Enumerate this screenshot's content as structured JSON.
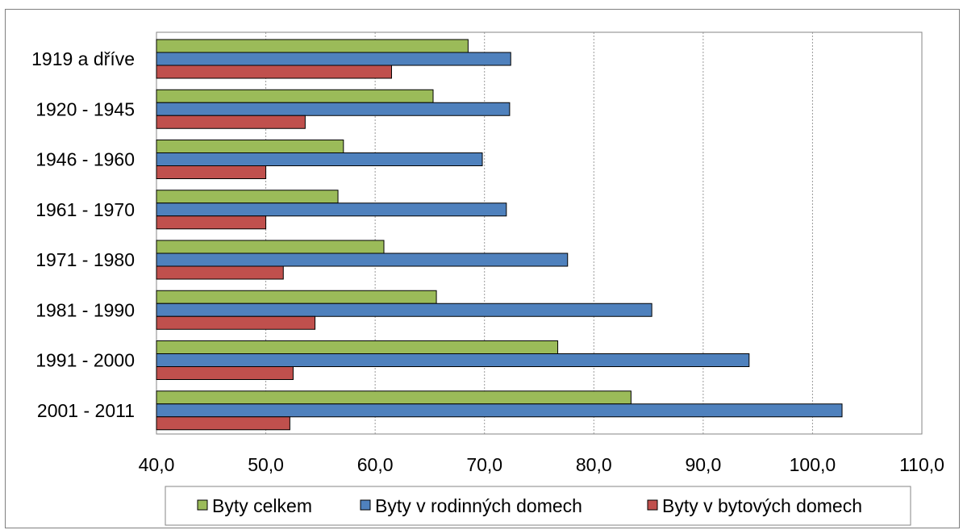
{
  "chart_data": {
    "type": "bar",
    "orientation": "horizontal",
    "title": "",
    "xlabel": "",
    "ylabel": "",
    "xlim": [
      40,
      110
    ],
    "x_ticks": [
      40,
      50,
      60,
      70,
      80,
      90,
      100,
      110
    ],
    "x_tick_labels": [
      "40,0",
      "50,0",
      "60,0",
      "70,0",
      "80,0",
      "90,0",
      "100,0",
      "110,0"
    ],
    "grid": "vertical dotted",
    "legend_position": "bottom",
    "categories": [
      "1919 a dříve",
      "1920 - 1945",
      "1946 - 1960",
      "1961 - 1970",
      "1971 - 1980",
      "1981 - 1990",
      "1991 - 2000",
      "2001 - 2011"
    ],
    "series": [
      {
        "name": "Byty celkem",
        "color": "#9bbb59",
        "values": [
          68.5,
          65.3,
          57.1,
          56.6,
          60.8,
          65.6,
          76.7,
          83.4
        ]
      },
      {
        "name": "Byty v rodinných domech",
        "color": "#4f81bd",
        "values": [
          72.4,
          72.3,
          69.8,
          72.0,
          77.6,
          85.3,
          94.2,
          102.7
        ]
      },
      {
        "name": "Byty v bytových domech",
        "color": "#c0504d",
        "values": [
          61.5,
          53.6,
          50.0,
          50.0,
          51.6,
          54.5,
          52.5,
          52.2
        ]
      }
    ]
  }
}
